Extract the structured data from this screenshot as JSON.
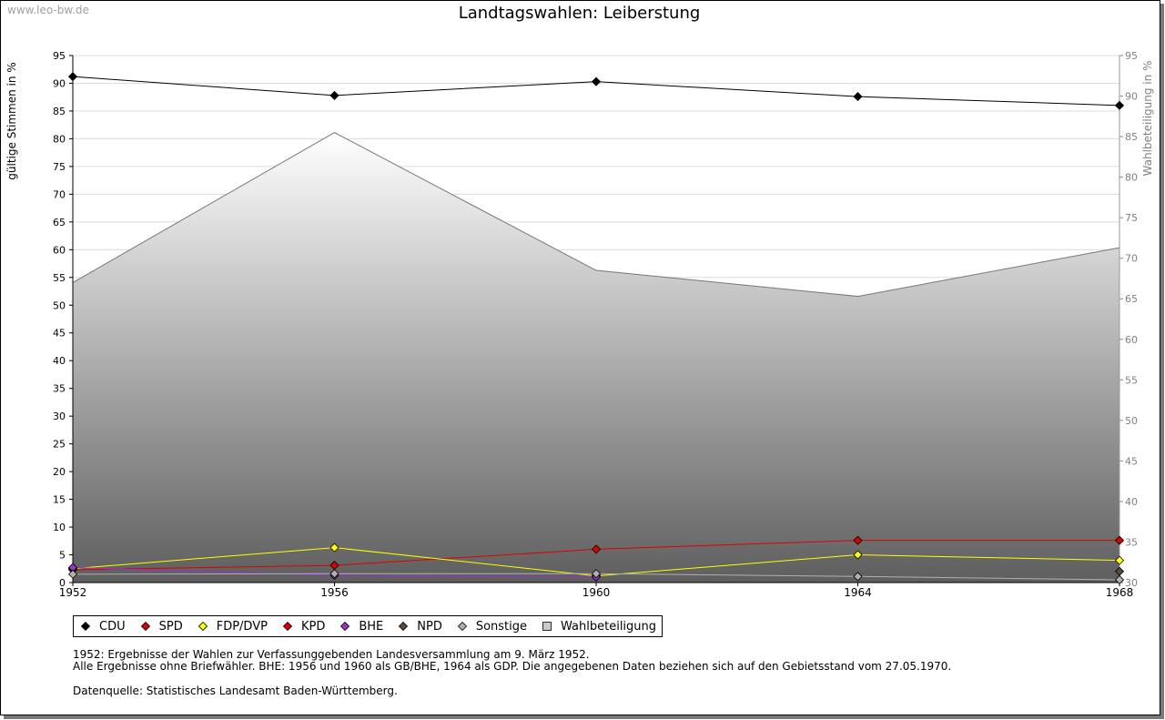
{
  "watermark": "www.leo-bw.de",
  "chart_data": {
    "type": "line",
    "title": "Landtagswahlen: Leiberstung",
    "ylabel": "gültige Stimmen in %",
    "y2label": "Wahlbeteiligung in %",
    "x": [
      1952,
      1956,
      1960,
      1964,
      1968
    ],
    "ylim": [
      0,
      95
    ],
    "y2lim": [
      30,
      95
    ],
    "yticks": [
      0,
      5,
      10,
      15,
      20,
      25,
      30,
      35,
      40,
      45,
      50,
      55,
      60,
      65,
      70,
      75,
      80,
      85,
      90,
      95
    ],
    "y2ticks": [
      30,
      35,
      40,
      45,
      50,
      55,
      60,
      65,
      70,
      75,
      80,
      85,
      90,
      95
    ],
    "series": [
      {
        "name": "CDU",
        "color": "#000000",
        "values": [
          91.2,
          87.8,
          90.3,
          87.6,
          86.0
        ]
      },
      {
        "name": "SPD",
        "color": "#dd0000",
        "values": [
          2.3,
          3.1,
          6.0,
          7.6,
          7.6
        ]
      },
      {
        "name": "FDP/DVP",
        "color": "#ffff00",
        "values": [
          2.5,
          6.3,
          1.2,
          5.0,
          4.0
        ]
      },
      {
        "name": "KPD",
        "color": "#dd0000",
        "values": [
          2.6,
          null,
          null,
          null,
          null
        ]
      },
      {
        "name": "BHE",
        "color": "#9933cc",
        "values": [
          2.7,
          1.3,
          1.0,
          null,
          null
        ]
      },
      {
        "name": "NPD",
        "color": "#5a4a3a",
        "values": [
          null,
          null,
          null,
          null,
          2.0
        ]
      },
      {
        "name": "Sonstige",
        "color": "#b0b0b0",
        "values": [
          1.5,
          1.6,
          1.6,
          1.1,
          0.5
        ]
      }
    ],
    "turnout": {
      "name": "Wahlbeteiligung",
      "values": [
        67.0,
        85.5,
        68.5,
        65.3,
        71.3
      ]
    }
  },
  "legend": [
    {
      "label": "CDU",
      "color": "#000000",
      "shape": "diamond"
    },
    {
      "label": "SPD",
      "color": "#dd0000",
      "shape": "diamond"
    },
    {
      "label": "FDP/DVP",
      "color": "#ffff00",
      "shape": "diamond"
    },
    {
      "label": "KPD",
      "color": "#dd0000",
      "shape": "diamond"
    },
    {
      "label": "BHE",
      "color": "#9933cc",
      "shape": "diamond"
    },
    {
      "label": "NPD",
      "color": "#5a4a3a",
      "shape": "diamond"
    },
    {
      "label": "Sonstige",
      "color": "#b0b0b0",
      "shape": "diamond"
    },
    {
      "label": "Wahlbeteiligung",
      "color": "#c8c8c8",
      "shape": "square"
    }
  ],
  "notes": {
    "line1": "1952: Ergebnisse der Wahlen zur Verfassunggebenden Landesversammlung am 9. März 1952.",
    "line2": "Alle Ergebnisse ohne Briefwähler. BHE: 1956 und 1960 als GB/BHE, 1964 als GDP. Die angegebenen Daten beziehen sich auf den Gebietsstand vom 27.05.1970.",
    "source": "Datenquelle: Statistisches Landesamt Baden-Württemberg."
  }
}
